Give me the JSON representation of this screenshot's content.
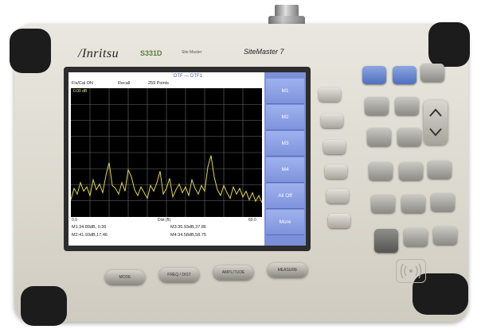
{
  "device": {
    "brand": "/Inritsu",
    "model": "S331D",
    "sub_label": "Site Master",
    "product_name": "SiteMaster 7"
  },
  "screen": {
    "title": "DTF — DTF1",
    "status": [
      "Fix/Cal ON",
      "Recall",
      "259 Points"
    ],
    "ref_level": "0.00 dB",
    "axis": {
      "start": "0.0",
      "middle": "Dist (ft)",
      "end": "60.0"
    },
    "markers_left": [
      "M1:34.89dB, 0.36",
      "M2:41.93dB,17.46"
    ],
    "markers_right": [
      "M3:36.93dB,37.86",
      "M4:34.58dB,58.75"
    ]
  },
  "softkeys": [
    "M1",
    "M2",
    "M3",
    "M4",
    "All Off",
    "More"
  ],
  "hard_keys": [
    "MODE",
    "FREQ / DIST",
    "AMPLITUDE",
    "MEASURE"
  ],
  "chart_data": {
    "type": "line",
    "title": "",
    "xlabel": "Dist (ft)",
    "ylabel": "",
    "xlim": [
      0,
      60
    ],
    "grid": true,
    "series": [
      {
        "values": [
          [
            0.0,
            -78
          ],
          [
            1.0,
            -70
          ],
          [
            2.0,
            -74
          ],
          [
            3.0,
            -66
          ],
          [
            4.0,
            -72
          ],
          [
            5.0,
            -69
          ],
          [
            6.0,
            -75
          ],
          [
            7.0,
            -64
          ],
          [
            8.0,
            -71
          ],
          [
            9.0,
            -67
          ],
          [
            10.0,
            -73
          ],
          [
            11.0,
            -61
          ],
          [
            12.0,
            -52
          ],
          [
            13.0,
            -68
          ],
          [
            14.0,
            -70
          ],
          [
            15.0,
            -74
          ],
          [
            16.0,
            -66
          ],
          [
            17.0,
            -72
          ],
          [
            18.0,
            -57
          ],
          [
            19.0,
            -62
          ],
          [
            20.0,
            -71
          ],
          [
            21.0,
            -75
          ],
          [
            22.0,
            -69
          ],
          [
            23.0,
            -73
          ],
          [
            24.0,
            -77
          ],
          [
            25.0,
            -68
          ],
          [
            26.0,
            -72
          ],
          [
            27.0,
            -66
          ],
          [
            28.0,
            -58
          ],
          [
            29.0,
            -74
          ],
          [
            30.0,
            -70
          ],
          [
            31.0,
            -63
          ],
          [
            32.0,
            -76
          ],
          [
            33.0,
            -71
          ],
          [
            34.0,
            -67
          ],
          [
            35.0,
            -73
          ],
          [
            36.0,
            -69
          ],
          [
            37.0,
            -75
          ],
          [
            38.0,
            -64
          ],
          [
            39.0,
            -70
          ],
          [
            40.0,
            -74
          ],
          [
            41.0,
            -68
          ],
          [
            42.0,
            -72
          ],
          [
            43.0,
            -55
          ],
          [
            44.0,
            -47
          ],
          [
            45.0,
            -62
          ],
          [
            46.0,
            -71
          ],
          [
            47.0,
            -75
          ],
          [
            48.0,
            -68
          ],
          [
            49.0,
            -73
          ],
          [
            50.0,
            -77
          ],
          [
            51.0,
            -69
          ],
          [
            52.0,
            -74
          ],
          [
            53.0,
            -70
          ],
          [
            54.0,
            -76
          ],
          [
            55.0,
            -72
          ],
          [
            56.0,
            -78
          ],
          [
            57.0,
            -73
          ],
          [
            58.0,
            -79
          ],
          [
            59.0,
            -75
          ],
          [
            60.0,
            -80
          ]
        ]
      }
    ],
    "ylim": [
      -90,
      0
    ]
  }
}
